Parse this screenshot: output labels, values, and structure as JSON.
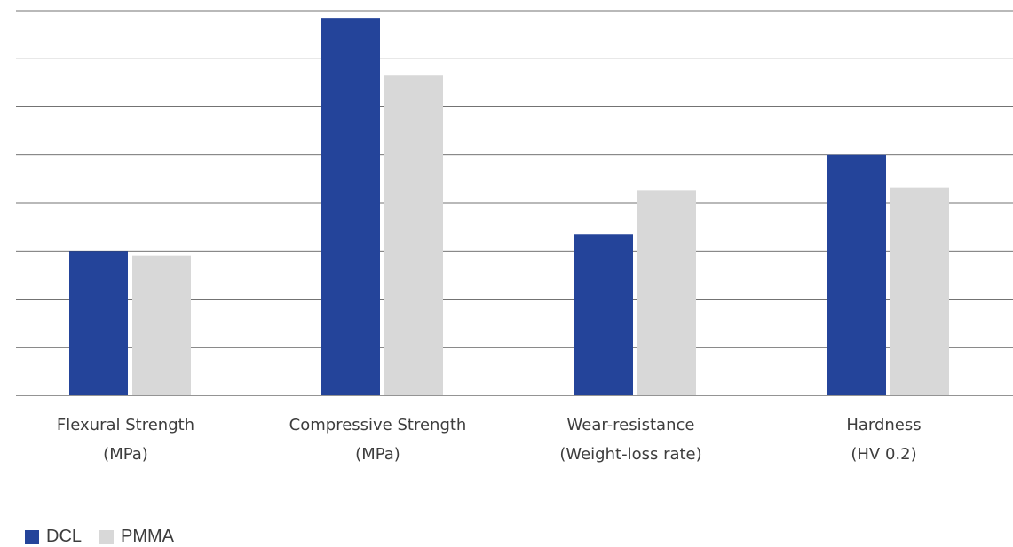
{
  "chart_data": {
    "type": "bar",
    "categories": [
      [
        "Flexural Strength",
        "(MPa)"
      ],
      [
        "Compressive Strength",
        "(MPa)"
      ],
      [
        "Wear-resistance",
        "(Weight-loss rate)"
      ],
      [
        "Hardness",
        "(HV 0.2)"
      ]
    ],
    "series": [
      {
        "name": "DCL",
        "color": "#24449a",
        "values": [
          3.0,
          7.85,
          3.35,
          5.0
        ]
      },
      {
        "name": "PMMA",
        "color": "#d8d8d8",
        "values": [
          2.9,
          6.65,
          4.27,
          4.32
        ]
      }
    ],
    "ylim": [
      0,
      8
    ],
    "grid": true,
    "legend_position": "bottom-left"
  }
}
